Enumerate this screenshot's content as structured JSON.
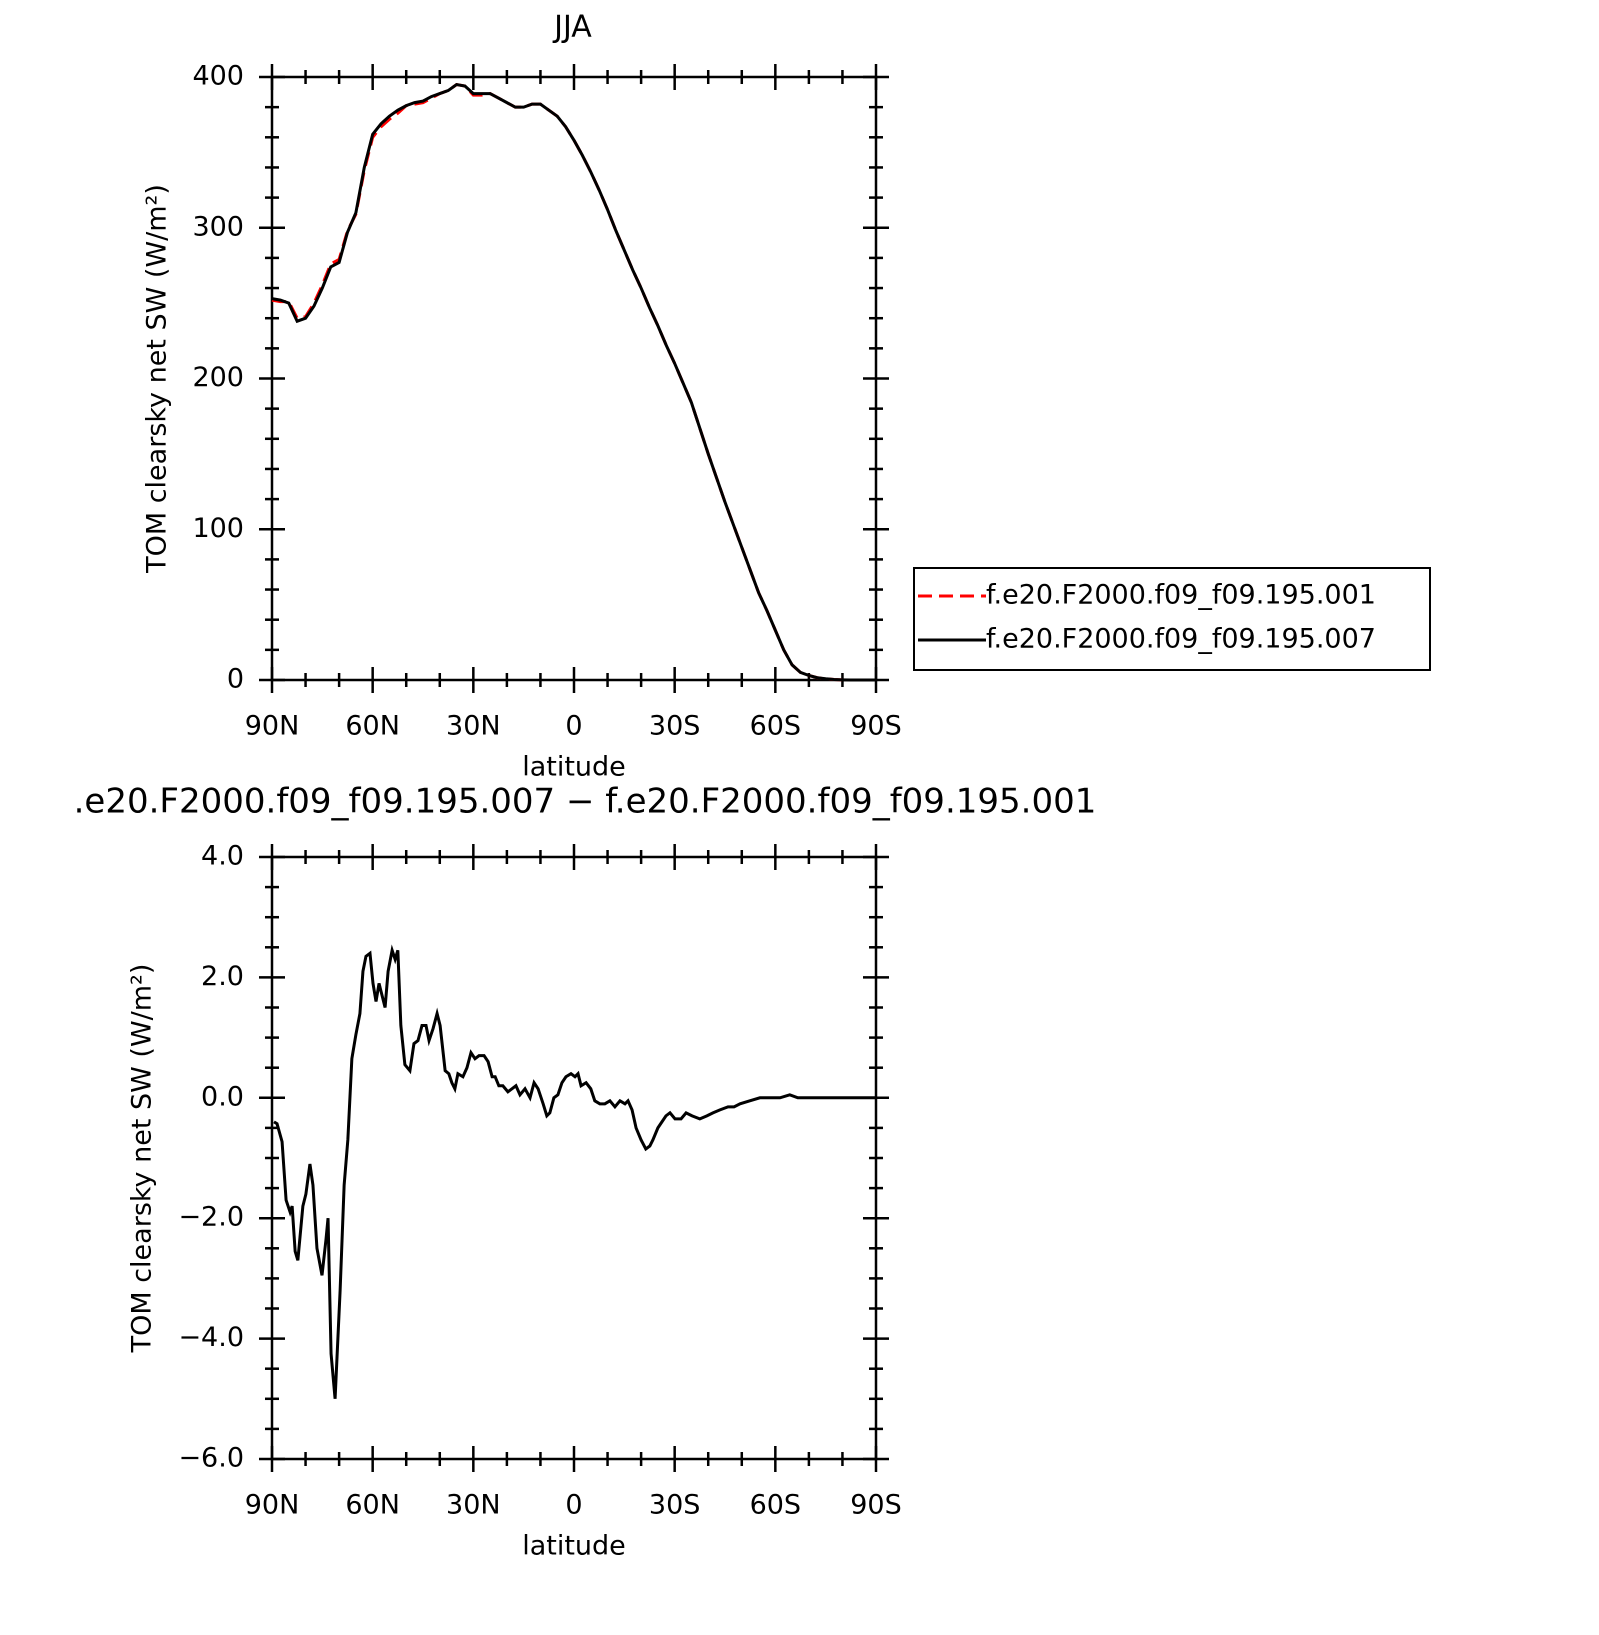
{
  "chart_data": [
    {
      "type": "line",
      "title": "JJA",
      "ylabel": "TOM clearsky net SW (W/m²)",
      "xlabel": "latitude",
      "xlim": [
        90,
        -90
      ],
      "ylim": [
        0,
        400
      ],
      "xticks": [
        {
          "value": 90,
          "label": "90N"
        },
        {
          "value": 60,
          "label": "60N"
        },
        {
          "value": 30,
          "label": "30N"
        },
        0,
        {
          "value": -30,
          "label": "30S"
        },
        {
          "value": -60,
          "label": "60S"
        },
        {
          "value": -90,
          "label": "90S"
        }
      ],
      "xminorticks": [
        80,
        70,
        50,
        40,
        20,
        10,
        -10,
        -20,
        -40,
        -50,
        -70,
        -80
      ],
      "yticks": [
        0,
        100,
        200,
        300,
        400
      ],
      "yminorticks": [
        20,
        40,
        60,
        80,
        120,
        140,
        160,
        180,
        220,
        240,
        260,
        280,
        320,
        340,
        360,
        380
      ],
      "legend": "right",
      "x": [
        90,
        87.5,
        85,
        82.5,
        80,
        77.5,
        75,
        72.5,
        70,
        67.5,
        65,
        62.5,
        60,
        57.5,
        55,
        52.5,
        50,
        47.5,
        45,
        42.5,
        40,
        37.5,
        35,
        32.5,
        30,
        27.5,
        25,
        22.5,
        20,
        17.5,
        15,
        12.5,
        10,
        7.5,
        5,
        2.5,
        0,
        -2.5,
        -5,
        -7.5,
        -10,
        -12.5,
        -15,
        -17.5,
        -20,
        -22.5,
        -25,
        -27.5,
        -30,
        -32.5,
        -35,
        -37.5,
        -40,
        -42.5,
        -45,
        -47.5,
        -50,
        -52.5,
        -55,
        -57.5,
        -60,
        -62.5,
        -65,
        -67.5,
        -70,
        -72.5,
        -75,
        -77.5,
        -80,
        -82.5,
        -85,
        -87.5,
        -90
      ],
      "series": [
        {
          "name": "f.e20.F2000.f09_f09.195.001",
          "color": "#ff0000",
          "line_style": "dashed",
          "values": [
            252,
            251,
            251,
            240,
            241,
            250,
            262,
            276,
            279,
            298,
            309,
            338,
            360,
            367,
            372,
            376,
            381,
            382,
            383,
            386,
            389,
            391,
            395,
            394,
            388,
            388,
            389,
            386,
            383,
            380,
            380,
            382,
            382,
            378,
            374,
            367,
            358,
            348,
            337,
            325,
            312,
            298,
            285,
            272,
            260,
            247,
            235,
            222,
            210,
            197,
            184,
            167,
            150,
            134,
            118,
            103,
            88,
            73,
            58,
            46,
            33,
            20,
            10,
            5,
            3,
            1.5,
            0.8,
            0.3,
            0.1,
            0,
            0,
            0,
            0
          ]
        },
        {
          "name": "f.e20.F2000.f09_f09.195.007",
          "color": "#000000",
          "line_style": "solid",
          "values": [
            253,
            252,
            250,
            238,
            240,
            248,
            260,
            274,
            277,
            297,
            310,
            340,
            362,
            369,
            374,
            378,
            381,
            383,
            384,
            387,
            389,
            391,
            395,
            394,
            389,
            389,
            389,
            386,
            383,
            380,
            380,
            382,
            382,
            378,
            374,
            367,
            358,
            348,
            337,
            325,
            312,
            298,
            285,
            272,
            260,
            247,
            235,
            222,
            210,
            197,
            184,
            167,
            150,
            134,
            118,
            103,
            88,
            73,
            58,
            46,
            33,
            20,
            10,
            5,
            3,
            1.5,
            0.8,
            0.3,
            0.1,
            0,
            0,
            0,
            0
          ]
        }
      ]
    },
    {
      "type": "line",
      "title": ".e20.F2000.f09_f09.195.007 − f.e20.F2000.f09_f09.195.001",
      "ylabel": "TOM clearsky net SW (W/m²)",
      "xlabel": "latitude",
      "xlim": [
        90,
        -90
      ],
      "ylim": [
        -6,
        4
      ],
      "xticks": [
        {
          "value": 90,
          "label": "90N"
        },
        {
          "value": 60,
          "label": "60N"
        },
        {
          "value": 30,
          "label": "30N"
        },
        0,
        {
          "value": -30,
          "label": "30S"
        },
        {
          "value": -60,
          "label": "60S"
        },
        {
          "value": -90,
          "label": "90S"
        }
      ],
      "xminorticks": [
        80,
        70,
        50,
        40,
        20,
        10,
        -10,
        -20,
        -40,
        -50,
        -70,
        -80
      ],
      "yticks": [
        {
          "value": 4,
          "label": "4.0"
        },
        {
          "value": 2,
          "label": "2.0"
        },
        {
          "value": 0,
          "label": "0.0"
        },
        {
          "value": -2,
          "label": "−2.0"
        },
        {
          "value": -4,
          "label": "−4.0"
        },
        {
          "value": -6,
          "label": "−6.0"
        }
      ],
      "yminorticks": [
        3.5,
        3,
        2.5,
        1.5,
        1,
        0.5,
        -0.5,
        -1,
        -1.5,
        -2.5,
        -3,
        -3.5,
        -4.5,
        -5,
        -5.5
      ],
      "x": [
        89.4,
        88.5,
        87,
        85.8,
        84.6,
        84,
        83.1,
        82.3,
        80.8,
        79.9,
        78.7,
        77.8,
        76.6,
        75.1,
        73.9,
        73.3,
        72.4,
        71.2,
        69.7,
        68.5,
        67.4,
        66.2,
        65,
        63.8,
        62.9,
        62,
        60.8,
        59.9,
        59,
        58.1,
        56.3,
        55.4,
        54.2,
        53.3,
        52.5,
        51.6,
        50.4,
        48.9,
        47.7,
        46.5,
        45.3,
        44.1,
        43.2,
        42,
        40.8,
        39.9,
        38.4,
        37.3,
        36.4,
        35.5,
        34.6,
        33.1,
        31.9,
        30.7,
        29.5,
        28.3,
        26.8,
        25.6,
        24.4,
        23.5,
        22.4,
        21.2,
        19.7,
        18.5,
        17.3,
        16.1,
        14.6,
        13.1,
        11.9,
        10.7,
        9.2,
        8.1,
        7.2,
        6,
        4.8,
        3.6,
        2.4,
        0.9,
        -0.3,
        -1.2,
        -2.1,
        -3.6,
        -5,
        -6.2,
        -7.7,
        -9.2,
        -10.7,
        -12.2,
        -13.7,
        -15.2,
        -16.1,
        -17.3,
        -18.5,
        -20,
        -21.4,
        -22.6,
        -23.5,
        -25,
        -26.2,
        -27.4,
        -28.6,
        -30.1,
        -31.9,
        -33.4,
        -35.2,
        -37.5,
        -39.6,
        -41.4,
        -43.5,
        -45.9,
        -47.7,
        -49.5,
        -52.4,
        -55.4,
        -58.4,
        -61.4,
        -64.3,
        -66.7,
        -70.3,
        -90
      ],
      "series": [
        {
          "color": "#000000",
          "line_style": "solid",
          "values": [
            -0.4,
            -0.43,
            -0.73,
            -1.7,
            -1.9,
            -1.8,
            -2.55,
            -2.7,
            -1.8,
            -1.6,
            -1.1,
            -1.45,
            -2.5,
            -2.95,
            -2.35,
            -2.0,
            -4.25,
            -5.0,
            -3.2,
            -1.45,
            -0.7,
            0.65,
            1.05,
            1.4,
            2.1,
            2.35,
            2.4,
            1.9,
            1.6,
            1.9,
            1.5,
            2.1,
            2.45,
            2.3,
            2.45,
            1.2,
            0.55,
            0.45,
            0.9,
            0.95,
            1.2,
            1.2,
            0.95,
            1.15,
            1.4,
            1.2,
            0.45,
            0.4,
            0.25,
            0.15,
            0.4,
            0.35,
            0.5,
            0.75,
            0.65,
            0.7,
            0.7,
            0.6,
            0.35,
            0.35,
            0.2,
            0.2,
            0.1,
            0.15,
            0.2,
            0.05,
            0.15,
            0,
            0.25,
            0.15,
            -0.1,
            -0.3,
            -0.25,
            0,
            0.05,
            0.25,
            0.35,
            0.4,
            0.35,
            0.4,
            0.2,
            0.25,
            0.15,
            -0.05,
            -0.1,
            -0.1,
            -0.05,
            -0.15,
            -0.05,
            -0.1,
            -0.05,
            -0.2,
            -0.5,
            -0.7,
            -0.85,
            -0.8,
            -0.7,
            -0.5,
            -0.4,
            -0.3,
            -0.25,
            -0.35,
            -0.35,
            -0.25,
            -0.3,
            -0.35,
            -0.3,
            -0.25,
            -0.2,
            -0.15,
            -0.15,
            -0.1,
            -0.05,
            0,
            0,
            0,
            0.05,
            0,
            0,
            0
          ]
        }
      ]
    }
  ]
}
